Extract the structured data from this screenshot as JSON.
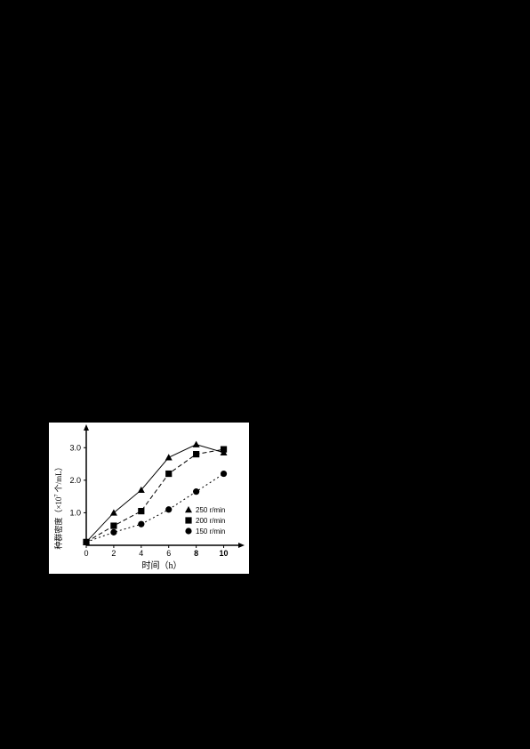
{
  "chart": {
    "type": "line",
    "background_color": "#ffffff",
    "line_color": "#000000",
    "xlabel": "时间（h）",
    "ylabel": "种群密度（×10⁷ 个/mL）",
    "ylabel_parts": [
      "种群密度",
      "（×10",
      "7",
      " 个/mL）"
    ],
    "xlim": [
      0,
      11
    ],
    "ylim": [
      0,
      3.5
    ],
    "xticks": [
      0,
      2,
      4,
      6,
      8,
      10
    ],
    "yticks": [
      1.0,
      2.0,
      3.0
    ],
    "ytick_labels": [
      "1.0",
      "2.0",
      "3.0"
    ],
    "series": [
      {
        "name": "250 r/min",
        "marker": "triangle",
        "dash": "none",
        "color": "#000000",
        "x": [
          0,
          2,
          4,
          6,
          8,
          10
        ],
        "y": [
          0.1,
          1.0,
          1.7,
          2.7,
          3.1,
          2.85
        ]
      },
      {
        "name": "200 r/min",
        "marker": "square",
        "dash": "5,3",
        "color": "#000000",
        "x": [
          0,
          2,
          4,
          6,
          8,
          10
        ],
        "y": [
          0.1,
          0.6,
          1.05,
          2.2,
          2.8,
          2.95
        ]
      },
      {
        "name": "150 r/min",
        "marker": "circle",
        "dash": "2,3",
        "color": "#000000",
        "x": [
          0,
          2,
          4,
          6,
          8,
          10
        ],
        "y": [
          0.1,
          0.4,
          0.65,
          1.1,
          1.65,
          2.2
        ]
      }
    ],
    "legend_position": "right-lower",
    "marker_size": 4,
    "axis_fontsize": 10,
    "tick_fontsize": 9
  }
}
